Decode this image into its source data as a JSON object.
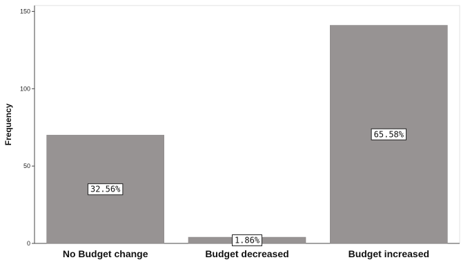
{
  "chart_data": {
    "type": "bar",
    "categories": [
      "No Budget change",
      "Budget decreased",
      "Budget increased"
    ],
    "values": [
      70,
      4,
      141
    ],
    "data_labels": [
      "32.56%",
      "1.86%",
      "65.58%"
    ],
    "title": "",
    "xlabel": "",
    "ylabel": "Frequency",
    "ylim": [
      0,
      150
    ],
    "yticks": [
      0,
      50,
      100,
      150
    ],
    "ytick_labels": [
      "0",
      "50",
      "100",
      "150"
    ],
    "bar_color": "#979393",
    "grid": false,
    "legend": "none"
  }
}
